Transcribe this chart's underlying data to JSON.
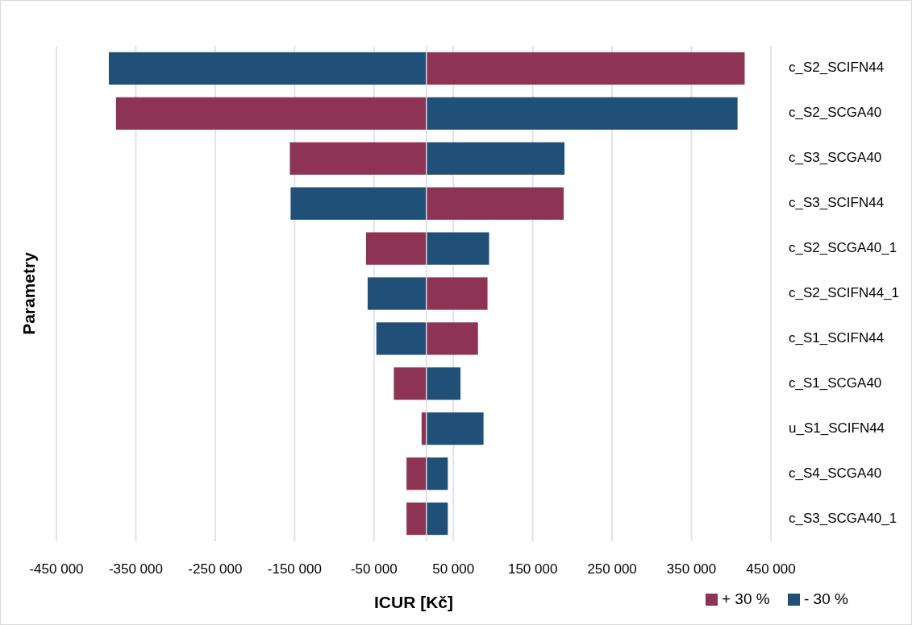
{
  "chart_data": {
    "type": "bar",
    "orientation": "horizontal",
    "xlabel": "ICUR [Kč]",
    "ylabel": "Parametry",
    "categories": [
      "c_S2_SCIFN44",
      "c_S2_SCGA40",
      "c_S3_SCGA40",
      "c_S3_SCIFN44",
      "c_S2_SCGA40_1",
      "c_S2_SCIFN44_1",
      "c_S1_SCIFN44",
      "c_S1_SCGA40",
      "u_S1_SCIFN44",
      "c_S4_SCGA40",
      "c_S3_SCGA40_1"
    ],
    "series": [
      {
        "name": "+ 30 %",
        "color": "#8d3455",
        "base": [
          16000,
          16000,
          16000,
          16000,
          16000,
          16000,
          16000,
          16000,
          16000,
          16000,
          16000
        ],
        "values": [
          401000,
          -391000,
          -172000,
          173000,
          -76000,
          77000,
          65000,
          -41000,
          -6000,
          -25000,
          -25000
        ]
      },
      {
        "name": "- 30 %",
        "color": "#204f78",
        "base": [
          16000,
          16000,
          16000,
          16000,
          16000,
          16000,
          16000,
          16000,
          16000,
          16000,
          16000
        ],
        "values": [
          -400000,
          392000,
          174000,
          -171000,
          79000,
          -74000,
          -63000,
          43000,
          72000,
          27000,
          27000
        ]
      }
    ],
    "xlim": [
      -450000,
      450000
    ],
    "xticks": [
      {
        "value": -450000,
        "label": "-450 000"
      },
      {
        "value": -350000,
        "label": "-350 000"
      },
      {
        "value": -250000,
        "label": "-250 000"
      },
      {
        "value": -150000,
        "label": "-150 000"
      },
      {
        "value": -50000,
        "label": "-50 000"
      },
      {
        "value": 50000,
        "label": "50 000"
      },
      {
        "value": 150000,
        "label": "150 000"
      },
      {
        "value": 250000,
        "label": "250 000"
      },
      {
        "value": 350000,
        "label": "350 000"
      },
      {
        "value": 450000,
        "label": "450 000"
      }
    ],
    "ref_lines": [
      {
        "axis": "x",
        "value": 16000,
        "color": "#d9d9d9"
      }
    ],
    "grid": "x",
    "legend": "bottom right"
  }
}
